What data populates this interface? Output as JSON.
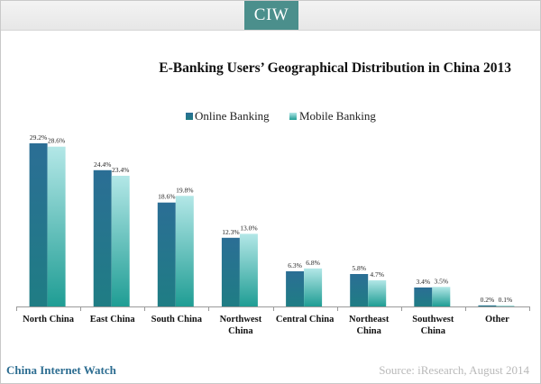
{
  "brand": {
    "tab_label": "CIW",
    "footer_left": "China Internet Watch",
    "footer_right": "Source: iResearch, August 2014"
  },
  "colors": {
    "online": "#1f6e8c",
    "mobile": "#8fd6d6",
    "brand": "#4b8f8c"
  },
  "chart_data": {
    "type": "bar",
    "title": "E-Banking Users’ Geographical Distribution in China 2013",
    "categories": [
      [
        "North China"
      ],
      [
        "East China"
      ],
      [
        "South China"
      ],
      [
        "Northwest",
        "China"
      ],
      [
        "Central China"
      ],
      [
        "Northeast",
        "China"
      ],
      [
        "Southwest",
        "China"
      ],
      [
        "Other"
      ]
    ],
    "series": [
      {
        "name": "Online Banking",
        "values": [
          29.2,
          24.4,
          18.6,
          12.3,
          6.3,
          5.8,
          3.4,
          0.2
        ]
      },
      {
        "name": "Mobile Banking",
        "values": [
          28.6,
          23.4,
          19.8,
          13.0,
          6.8,
          4.7,
          3.5,
          0.1
        ]
      }
    ],
    "ylim": [
      0,
      30
    ],
    "legend_position": "top-center",
    "grid": false,
    "xlabel": "",
    "ylabel": ""
  }
}
